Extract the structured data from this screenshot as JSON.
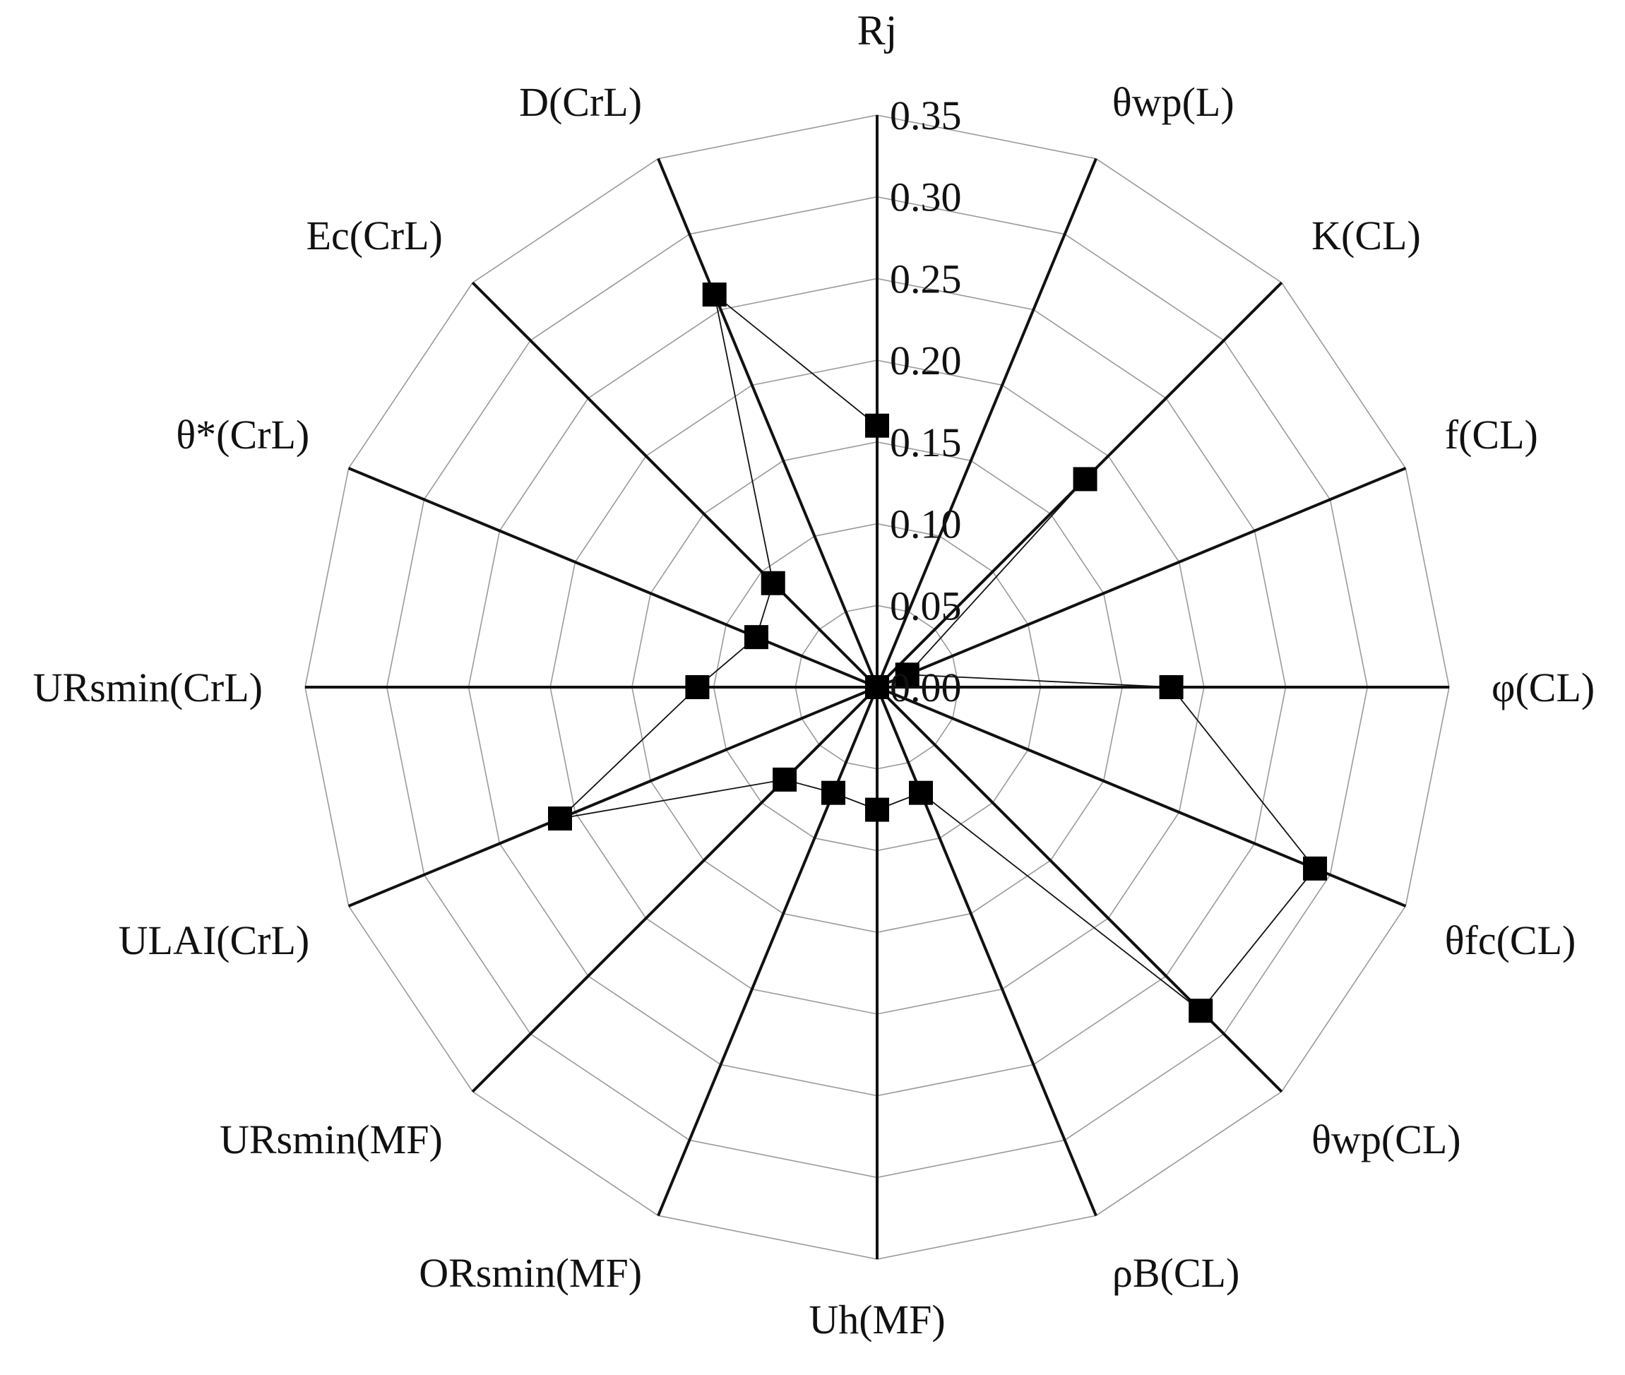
{
  "chart_data": {
    "type": "radar",
    "title": "",
    "axis_title": "Rj",
    "categories": [
      "Rj",
      "θwp(L)",
      "K(CL)",
      "f(CL)",
      "φ(CL)",
      "θfc(CL)",
      "θwp(CL)",
      "ρB(CL)",
      "Uh(MF)",
      "ORsmin(MF)",
      "URsmin(MF)",
      "ULAI(CrL)",
      "URsmin(CrL)",
      "θ*(CrL)",
      "Ec(CrL)",
      "D(CrL)"
    ],
    "tick_labels": [
      "0.00",
      "0.05",
      "0.10",
      "0.15",
      "0.20",
      "0.25",
      "0.30",
      "0.35"
    ],
    "rlim": [
      0,
      0.35
    ],
    "grid": true,
    "legend": "none",
    "series": [
      {
        "values": [
          0.16,
          0.0,
          0.18,
          0.02,
          0.18,
          0.29,
          0.28,
          0.07,
          0.075,
          0.07,
          0.08,
          0.21,
          0.11,
          0.08,
          0.09,
          0.26
        ]
      }
    ]
  }
}
